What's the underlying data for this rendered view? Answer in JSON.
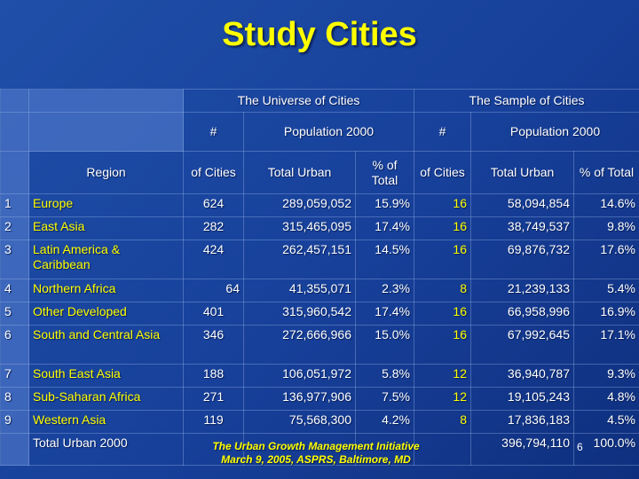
{
  "title": "Study Cities",
  "header": {
    "universe": "The Universe of Cities",
    "sample": "The Sample of Cities",
    "hash": "#",
    "population": "Population 2000",
    "region": "Region",
    "of_cities": "of Cities",
    "total_urban": "Total Urban",
    "pct_total": "% of Total"
  },
  "rows": [
    {
      "n": "1",
      "region": "Europe",
      "u_cities": "624",
      "u_total": "289,059,052",
      "u_pct": "15.9%",
      "s_cities": "16",
      "s_total": "58,094,854",
      "s_pct": "14.6%"
    },
    {
      "n": "2",
      "region": "East Asia",
      "u_cities": "282",
      "u_total": "315,465,095",
      "u_pct": "17.4%",
      "s_cities": "16",
      "s_total": "38,749,537",
      "s_pct": "9.8%"
    },
    {
      "n": "3",
      "region": "Latin America & Caribbean",
      "u_cities": "424",
      "u_total": "262,457,151",
      "u_pct": "14.5%",
      "s_cities": "16",
      "s_total": "69,876,732",
      "s_pct": "17.6%"
    },
    {
      "n": "4",
      "region": "Northern Africa",
      "u_cities": "64",
      "u_total": "41,355,071",
      "u_pct": "2.3%",
      "s_cities": "8",
      "s_total": "21,239,133",
      "s_pct": "5.4%"
    },
    {
      "n": "5",
      "region": "Other Developed",
      "u_cities": "401",
      "u_total": "315,960,542",
      "u_pct": "17.4%",
      "s_cities": "16",
      "s_total": "66,958,996",
      "s_pct": "16.9%"
    },
    {
      "n": "6",
      "region": "South and Central Asia",
      "u_cities": "346",
      "u_total": "272,666,966",
      "u_pct": "15.0%",
      "s_cities": "16",
      "s_total": "67,992,645",
      "s_pct": "17.1%"
    },
    {
      "n": "7",
      "region": "South East Asia",
      "u_cities": "188",
      "u_total": "106,051,972",
      "u_pct": "5.8%",
      "s_cities": "12",
      "s_total": "36,940,787",
      "s_pct": "9.3%"
    },
    {
      "n": "8",
      "region": "Sub-Saharan Africa",
      "u_cities": "271",
      "u_total": "136,977,906",
      "u_pct": "7.5%",
      "s_cities": "12",
      "s_total": "19,105,243",
      "s_pct": "4.8%"
    },
    {
      "n": "9",
      "region": "Western Asia",
      "u_cities": "119",
      "u_total": "75,568,300",
      "u_pct": "4.2%",
      "s_cities": "8",
      "s_total": "17,836,183",
      "s_pct": "4.5%"
    }
  ],
  "total": {
    "label": "Total Urban 2000",
    "s_total": "396,794,110",
    "s_pct": "100.0%"
  },
  "footer": {
    "line1": "The Urban Growth Management Initiative",
    "line2": "March 9, 2005, ASPRS, Baltimore, MD"
  },
  "slide_number": "6"
}
